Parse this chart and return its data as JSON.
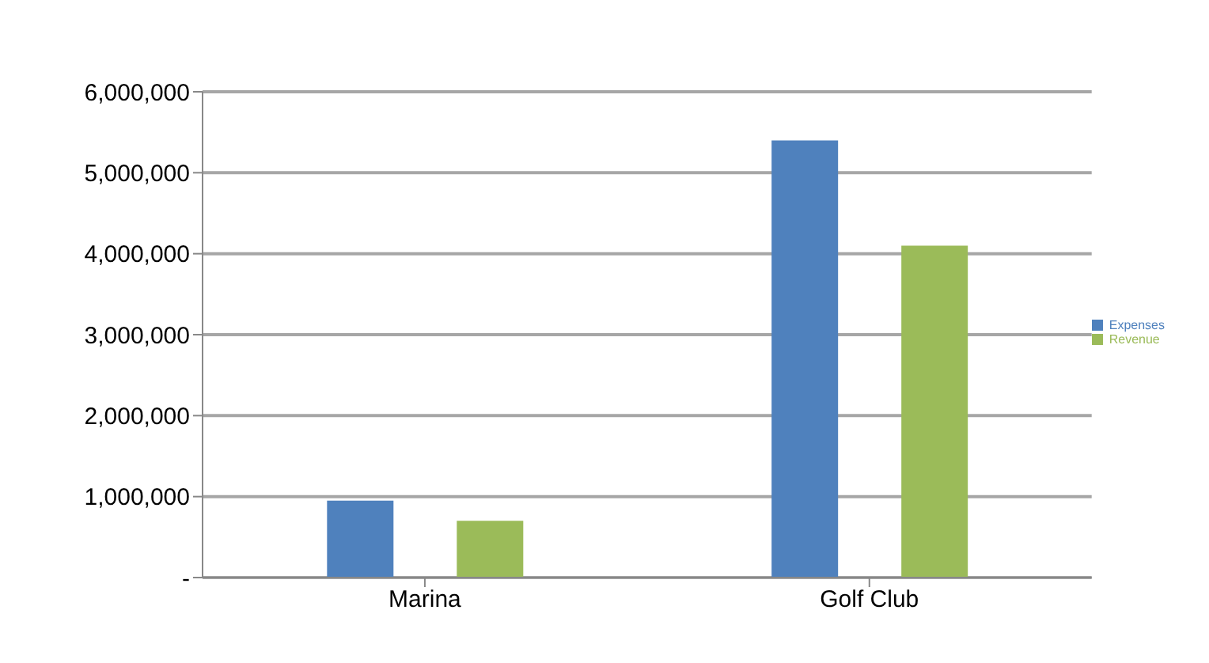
{
  "chart_data": {
    "type": "bar",
    "categories": [
      "Marina",
      "Golf Club"
    ],
    "series": [
      {
        "name": "Expenses",
        "color": "#4f81bd",
        "values": [
          950000,
          5400000
        ]
      },
      {
        "name": "Revenue",
        "color": "#9bbb59",
        "values": [
          700000,
          4100000
        ]
      }
    ],
    "ylim": [
      0,
      6000000
    ],
    "yticks": [
      {
        "value": 0,
        "label": "-"
      },
      {
        "value": 1000000,
        "label": "1,000,000"
      },
      {
        "value": 2000000,
        "label": "2,000,000"
      },
      {
        "value": 3000000,
        "label": "3,000,000"
      },
      {
        "value": 4000000,
        "label": "4,000,000"
      },
      {
        "value": 5000000,
        "label": "5,000,000"
      },
      {
        "value": 6000000,
        "label": "6,000,000"
      }
    ],
    "grid": "y",
    "legend": "right"
  }
}
